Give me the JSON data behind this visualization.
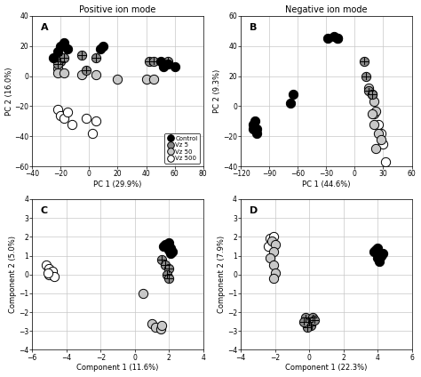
{
  "title_A": "Positive ion mode",
  "title_B": "Negative ion mode",
  "label_A": "A",
  "label_B": "B",
  "label_C": "C",
  "label_D": "D",
  "xlabel_A": "PC 1 (29.9%)",
  "ylabel_A": "PC 2 (16.0%)",
  "xlabel_B": "PC 1 (44.6%)",
  "ylabel_B": "PC 2 (9.3%)",
  "xlabel_C": "Component 1 (11.6%)",
  "ylabel_C": "Component 2 (5.0%)",
  "xlabel_D": "Component 1 (22.3%)",
  "ylabel_D": "Component 2 (7.9%)",
  "xlim_A": [
    -40,
    80
  ],
  "ylim_A": [
    -60,
    40
  ],
  "xlim_B": [
    -120,
    60
  ],
  "ylim_B": [
    -40,
    60
  ],
  "xlim_C": [
    -6,
    4
  ],
  "ylim_C": [
    -4,
    4
  ],
  "xlim_D": [
    -4,
    6
  ],
  "ylim_D": [
    -4,
    4
  ],
  "xticks_A": [
    -40,
    -20,
    0,
    20,
    40,
    60,
    80
  ],
  "yticks_A": [
    -60,
    -40,
    -20,
    0,
    20,
    40
  ],
  "xticks_B": [
    -120,
    -90,
    -60,
    -30,
    0,
    30,
    60
  ],
  "yticks_B": [
    -40,
    -20,
    0,
    20,
    40,
    60
  ],
  "xticks_C": [
    -6,
    -4,
    -2,
    0,
    2,
    4
  ],
  "yticks_C": [
    -4,
    -3,
    -2,
    -1,
    0,
    1,
    2,
    3,
    4
  ],
  "xticks_D": [
    -4,
    -2,
    0,
    2,
    4,
    6
  ],
  "yticks_D": [
    -4,
    -3,
    -2,
    -1,
    0,
    1,
    2,
    3,
    4
  ],
  "A_control": [
    [
      -20,
      20
    ],
    [
      -18,
      22
    ],
    [
      -22,
      16
    ],
    [
      -25,
      12
    ],
    [
      -15,
      18
    ],
    [
      8,
      18
    ],
    [
      10,
      20
    ],
    [
      50,
      10
    ],
    [
      55,
      8
    ],
    [
      60,
      6
    ],
    [
      52,
      6
    ]
  ],
  "A_vz5": [
    [
      -22,
      14
    ],
    [
      -20,
      10
    ],
    [
      -22,
      8
    ],
    [
      -18,
      12
    ],
    [
      -5,
      14
    ],
    [
      5,
      12
    ],
    [
      -2,
      4
    ],
    [
      42,
      10
    ],
    [
      55,
      10
    ],
    [
      45,
      10
    ]
  ],
  "A_vz50": [
    [
      -22,
      5
    ],
    [
      -22,
      2
    ],
    [
      -18,
      2
    ],
    [
      -5,
      1
    ],
    [
      5,
      1
    ],
    [
      20,
      -2
    ],
    [
      40,
      -2
    ],
    [
      45,
      -2
    ]
  ],
  "A_vz500": [
    [
      -22,
      -22
    ],
    [
      -20,
      -26
    ],
    [
      -18,
      -28
    ],
    [
      -15,
      -24
    ],
    [
      -12,
      -32
    ],
    [
      -2,
      -28
    ],
    [
      2,
      -38
    ],
    [
      5,
      -30
    ]
  ],
  "B_control": [
    [
      -103,
      -15
    ],
    [
      -107,
      -15
    ],
    [
      -103,
      -18
    ],
    [
      -107,
      -12
    ],
    [
      -105,
      -10
    ],
    [
      -68,
      2
    ],
    [
      -65,
      8
    ],
    [
      -28,
      45
    ],
    [
      -22,
      46
    ],
    [
      -18,
      45
    ]
  ],
  "B_vz5": [
    [
      -18,
      45
    ],
    [
      10,
      30
    ],
    [
      12,
      20
    ],
    [
      15,
      10
    ],
    [
      18,
      8
    ]
  ],
  "B_vz50": [
    [
      15,
      12
    ],
    [
      18,
      8
    ],
    [
      20,
      3
    ],
    [
      22,
      -3
    ],
    [
      18,
      -5
    ],
    [
      20,
      -12
    ],
    [
      25,
      -18
    ],
    [
      28,
      -22
    ],
    [
      22,
      -28
    ]
  ],
  "B_vz500": [
    [
      20,
      -5
    ],
    [
      25,
      -12
    ],
    [
      28,
      -18
    ],
    [
      30,
      -25
    ],
    [
      32,
      -37
    ]
  ],
  "C_control": [
    [
      1.8,
      1.6
    ],
    [
      1.9,
      1.5
    ],
    [
      2.0,
      1.3
    ],
    [
      2.0,
      1.7
    ],
    [
      2.1,
      1.4
    ],
    [
      2.1,
      1.1
    ],
    [
      1.7,
      1.5
    ],
    [
      2.2,
      1.2
    ]
  ],
  "C_vz5": [
    [
      1.6,
      0.8
    ],
    [
      1.8,
      0.5
    ],
    [
      2.0,
      0.3
    ],
    [
      1.9,
      0.0
    ],
    [
      2.0,
      -0.2
    ]
  ],
  "C_vz50": [
    [
      0.5,
      -1.0
    ],
    [
      1.0,
      -2.6
    ],
    [
      1.2,
      -2.8
    ],
    [
      1.5,
      -2.9
    ],
    [
      1.6,
      -2.7
    ]
  ],
  "C_vz500": [
    [
      -5.2,
      0.5
    ],
    [
      -5.0,
      0.3
    ],
    [
      -4.8,
      0.2
    ],
    [
      -5.0,
      0.0
    ],
    [
      -4.7,
      -0.1
    ],
    [
      -5.1,
      0.1
    ]
  ],
  "D_control": [
    [
      3.8,
      1.2
    ],
    [
      4.0,
      0.9
    ],
    [
      4.2,
      1.0
    ],
    [
      3.9,
      1.3
    ],
    [
      4.1,
      0.7
    ],
    [
      4.3,
      1.1
    ],
    [
      4.0,
      1.4
    ]
  ],
  "D_vz5": [
    [
      -0.2,
      -2.3
    ],
    [
      0.0,
      -2.5
    ],
    [
      0.1,
      -2.7
    ],
    [
      0.2,
      -2.3
    ],
    [
      -0.1,
      -2.8
    ],
    [
      -0.3,
      -2.5
    ],
    [
      0.3,
      -2.4
    ]
  ],
  "D_vz50": [
    [
      -2.2,
      1.8
    ],
    [
      -2.0,
      1.6
    ],
    [
      -2.1,
      1.2
    ],
    [
      -2.3,
      0.9
    ],
    [
      -2.1,
      0.5
    ],
    [
      -2.0,
      0.1
    ],
    [
      -2.1,
      -0.2
    ]
  ],
  "D_vz500": [
    [
      -2.3,
      1.9
    ],
    [
      -2.1,
      2.0
    ],
    [
      -2.2,
      1.7
    ],
    [
      -2.4,
      1.5
    ]
  ],
  "colors": {
    "control": "#000000",
    "vz5": "#888888",
    "vz50": "#c8c8c8",
    "vz500": "#ffffff"
  },
  "bg_color": "#ffffff",
  "grid_color": "#c8c8c8"
}
